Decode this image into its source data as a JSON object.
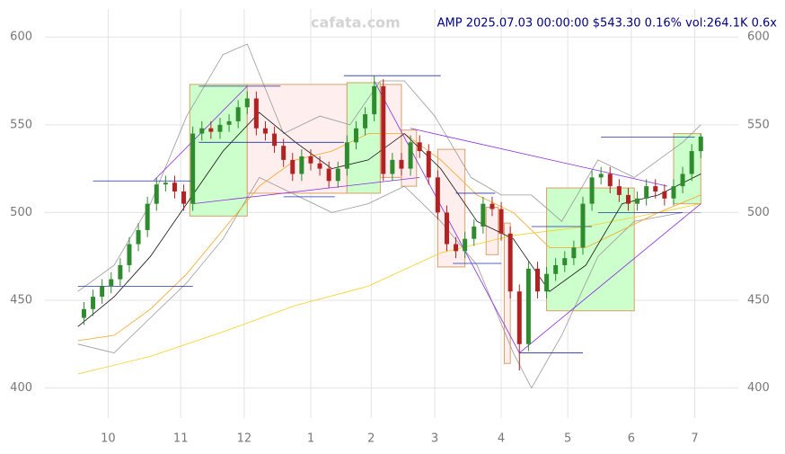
{
  "chart_data": {
    "type": "candlestick",
    "title": "AMP 2025.07.03 00:00:00 $543.30 0.16% vol:264.1K 0.6x",
    "watermark": "cafata.com",
    "xlim": [
      -2,
      208
    ],
    "xticks": [
      {
        "value": 10,
        "label": "10"
      },
      {
        "value": 34,
        "label": "11"
      },
      {
        "value": 55,
        "label": "12"
      },
      {
        "value": 77,
        "label": "1"
      },
      {
        "value": 97,
        "label": "2"
      },
      {
        "value": 118,
        "label": "3"
      },
      {
        "value": 140,
        "label": "4"
      },
      {
        "value": 162,
        "label": "5"
      },
      {
        "value": 183,
        "label": "6"
      },
      {
        "value": 204,
        "label": "7"
      }
    ],
    "ylim": [
      388,
      616
    ],
    "yticks": [
      400,
      450,
      500,
      550,
      600
    ],
    "grid": true,
    "up_color": "#2e8b2e",
    "down_color": "#b22222",
    "x": [
      2,
      5,
      8,
      11,
      14,
      17,
      20,
      23,
      26,
      29,
      32,
      35,
      38,
      41,
      44,
      47,
      50,
      53,
      56,
      59,
      62,
      65,
      68,
      71,
      74,
      77,
      80,
      83,
      86,
      89,
      92,
      95,
      98,
      101,
      104,
      107,
      110,
      113,
      116,
      119,
      122,
      125,
      128,
      131,
      134,
      137,
      140,
      143,
      146,
      149,
      152,
      155,
      158,
      161,
      164,
      167,
      170,
      173,
      176,
      179,
      182,
      185,
      188,
      191,
      194,
      197,
      200,
      203,
      206
    ],
    "ohlc": [
      [
        440,
        449,
        436,
        445
      ],
      [
        445,
        456,
        441,
        452
      ],
      [
        452,
        462,
        448,
        458
      ],
      [
        458,
        466,
        454,
        462
      ],
      [
        462,
        474,
        458,
        470
      ],
      [
        470,
        486,
        466,
        482
      ],
      [
        482,
        494,
        478,
        490
      ],
      [
        490,
        509,
        486,
        505
      ],
      [
        505,
        520,
        501,
        516
      ],
      [
        516,
        521,
        512,
        517
      ],
      [
        517,
        521,
        508,
        512
      ],
      [
        512,
        516,
        501,
        505
      ],
      [
        505,
        549,
        501,
        545
      ],
      [
        545,
        552,
        541,
        548
      ],
      [
        548,
        552,
        542,
        546
      ],
      [
        546,
        554,
        542,
        550
      ],
      [
        550,
        556,
        546,
        552
      ],
      [
        552,
        564,
        548,
        560
      ],
      [
        560,
        569,
        556,
        565
      ],
      [
        565,
        569,
        544,
        548
      ],
      [
        548,
        552,
        541,
        545
      ],
      [
        545,
        549,
        534,
        538
      ],
      [
        538,
        542,
        526,
        530
      ],
      [
        530,
        534,
        518,
        522
      ],
      [
        522,
        536,
        518,
        532
      ],
      [
        532,
        536,
        524,
        528
      ],
      [
        528,
        532,
        521,
        525
      ],
      [
        525,
        529,
        514,
        518
      ],
      [
        518,
        529,
        514,
        525
      ],
      [
        525,
        544,
        521,
        540
      ],
      [
        540,
        552,
        536,
        548
      ],
      [
        548,
        560,
        544,
        556
      ],
      [
        556,
        578,
        552,
        572
      ],
      [
        572,
        576,
        518,
        522
      ],
      [
        522,
        534,
        518,
        530
      ],
      [
        530,
        534,
        521,
        525
      ],
      [
        525,
        544,
        521,
        540
      ],
      [
        540,
        544,
        531,
        535
      ],
      [
        535,
        539,
        516,
        520
      ],
      [
        520,
        524,
        496,
        500
      ],
      [
        500,
        504,
        478,
        482
      ],
      [
        482,
        486,
        474,
        478
      ],
      [
        478,
        489,
        474,
        485
      ],
      [
        485,
        496,
        481,
        492
      ],
      [
        492,
        509,
        488,
        505
      ],
      [
        505,
        509,
        498,
        502
      ],
      [
        502,
        506,
        484,
        488
      ],
      [
        488,
        492,
        451,
        455
      ],
      [
        455,
        459,
        410,
        425
      ],
      [
        425,
        472,
        421,
        468
      ],
      [
        468,
        472,
        451,
        455
      ],
      [
        455,
        469,
        451,
        465
      ],
      [
        465,
        474,
        461,
        470
      ],
      [
        470,
        478,
        466,
        474
      ],
      [
        474,
        484,
        470,
        480
      ],
      [
        480,
        509,
        476,
        505
      ],
      [
        505,
        524,
        501,
        520
      ],
      [
        520,
        526,
        516,
        522
      ],
      [
        522,
        526,
        511,
        515
      ],
      [
        515,
        519,
        506,
        510
      ],
      [
        510,
        514,
        501,
        505
      ],
      [
        505,
        512,
        501,
        508
      ],
      [
        508,
        519,
        504,
        515
      ],
      [
        515,
        519,
        508,
        512
      ],
      [
        512,
        516,
        504,
        508
      ],
      [
        508,
        519,
        504,
        515
      ],
      [
        515,
        526,
        511,
        522
      ],
      [
        522,
        539,
        518,
        535
      ],
      [
        535,
        545,
        531,
        543.3
      ]
    ],
    "lines": [
      {
        "color": "#999999",
        "x": [
          0,
          12,
          24,
          36,
          48,
          56,
          68,
          80,
          90,
          100,
          108,
          118,
          130,
          140,
          150,
          160,
          172,
          184,
          200,
          206
        ],
        "values": [
          455,
          470,
          505,
          555,
          590,
          596,
          545,
          555,
          550,
          575,
          575,
          555,
          520,
          510,
          510,
          495,
          530,
          520,
          540,
          550
        ]
      },
      {
        "color": "#999999",
        "x": [
          0,
          12,
          24,
          36,
          48,
          60,
          72,
          84,
          96,
          108,
          120,
          132,
          144,
          150,
          160,
          172,
          184,
          200,
          206
        ],
        "values": [
          425,
          420,
          440,
          460,
          485,
          520,
          510,
          500,
          505,
          515,
          495,
          470,
          420,
          400,
          430,
          475,
          495,
          500,
          500
        ]
      },
      {
        "color": "#f5a623",
        "x": [
          0,
          12,
          24,
          36,
          48,
          60,
          72,
          84,
          96,
          108,
          120,
          132,
          144,
          156,
          168,
          180,
          192,
          206
        ],
        "values": [
          427,
          430,
          445,
          465,
          490,
          515,
          530,
          535,
          545,
          545,
          530,
          510,
          500,
          480,
          480,
          490,
          500,
          510
        ]
      },
      {
        "color": "#f5d020",
        "x": [
          0,
          24,
          48,
          72,
          96,
          120,
          144,
          168,
          192,
          206
        ],
        "values": [
          408,
          418,
          432,
          447,
          458,
          477,
          487,
          492,
          500,
          505
        ]
      },
      {
        "color": "#111111",
        "x": [
          0,
          12,
          24,
          36,
          48,
          60,
          72,
          84,
          96,
          108,
          120,
          132,
          144,
          156,
          168,
          180,
          192,
          206
        ],
        "values": [
          435,
          452,
          475,
          505,
          535,
          557,
          540,
          525,
          530,
          545,
          525,
          495,
          485,
          455,
          470,
          505,
          510,
          522
        ]
      }
    ],
    "boxes": [
      {
        "x": [
          37,
          56
        ],
        "y": [
          498,
          573
        ],
        "color": "#ccffcc"
      },
      {
        "x": [
          56,
          89
        ],
        "y": [
          511,
          573
        ],
        "color": "#ffeeee"
      },
      {
        "x": [
          89,
          100
        ],
        "y": [
          511,
          574
        ],
        "color": "#ccffcc"
      },
      {
        "x": [
          100,
          107
        ],
        "y": [
          520,
          573
        ],
        "color": "#ffeeee"
      },
      {
        "x": [
          107,
          112
        ],
        "y": [
          515,
          547
        ],
        "color": "#ffeeee"
      },
      {
        "x": [
          119,
          128
        ],
        "y": [
          469,
          536
        ],
        "color": "#ffeeee"
      },
      {
        "x": [
          135,
          139
        ],
        "y": [
          476,
          503
        ],
        "color": "#ffeeee"
      },
      {
        "x": [
          141,
          143
        ],
        "y": [
          414,
          494
        ],
        "color": "#ffeeee"
      },
      {
        "x": [
          155,
          184
        ],
        "y": [
          444,
          514
        ],
        "color": "#ccffcc"
      },
      {
        "x": [
          197,
          206
        ],
        "y": [
          505,
          545
        ],
        "color": "#ccffcc"
      }
    ],
    "levels": [
      {
        "x": [
          5,
          38
        ],
        "value": 518
      },
      {
        "x": [
          0,
          38
        ],
        "value": 458
      },
      {
        "x": [
          40,
          67
        ],
        "value": 572
      },
      {
        "x": [
          40,
          88
        ],
        "value": 540
      },
      {
        "x": [
          88,
          120
        ],
        "value": 578
      },
      {
        "x": [
          68,
          85
        ],
        "value": 509
      },
      {
        "x": [
          125,
          138
        ],
        "value": 511
      },
      {
        "x": [
          124,
          140
        ],
        "value": 471
      },
      {
        "x": [
          146,
          167
        ],
        "value": 420
      },
      {
        "x": [
          150,
          170
        ],
        "value": 492
      },
      {
        "x": [
          173,
          204
        ],
        "value": 543
      },
      {
        "x": [
          172,
          200
        ],
        "value": 500
      }
    ],
    "trendlines": [
      {
        "x": [
          25,
          56
        ],
        "y": [
          518,
          572
        ]
      },
      {
        "x": [
          38,
          113
        ],
        "y": [
          505,
          520
        ]
      },
      {
        "x": [
          98,
          146
        ],
        "y": [
          575,
          420
        ]
      },
      {
        "x": [
          146,
          206
        ],
        "y": [
          420,
          505
        ]
      },
      {
        "x": [
          110,
          195
        ],
        "y": [
          548,
          515
        ]
      }
    ]
  }
}
